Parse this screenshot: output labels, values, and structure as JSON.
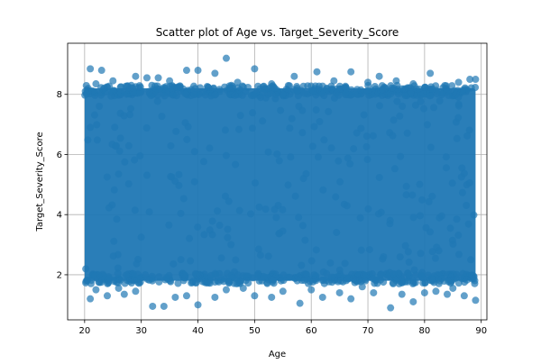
{
  "chart_data": {
    "type": "scatter",
    "title": "Scatter plot of Age vs. Target_Severity_Score",
    "xlabel": "Age",
    "ylabel": "Target_Severity_Score",
    "xlim": [
      17,
      91
    ],
    "ylim": [
      0.5,
      9.7
    ],
    "xticks": [
      20,
      30,
      40,
      50,
      60,
      70,
      80,
      90
    ],
    "yticks": [
      2,
      4,
      6,
      8
    ],
    "xtick_labels": [
      "20",
      "30",
      "40",
      "50",
      "60",
      "70",
      "80",
      "90"
    ],
    "ytick_labels": [
      "2",
      "4",
      "6",
      "8"
    ],
    "grid": true,
    "legend": "none",
    "marker_color": "#1f77b4",
    "marker_alpha": 0.7,
    "x_range_of_points": [
      20,
      89
    ],
    "dense_band": [
      1.8,
      8.2
    ],
    "outliers": [
      [
        21,
        8.85
      ],
      [
        23,
        8.8
      ],
      [
        29,
        8.6
      ],
      [
        33,
        8.55
      ],
      [
        35,
        8.45
      ],
      [
        38,
        8.8
      ],
      [
        40,
        8.8
      ],
      [
        43,
        8.7
      ],
      [
        45,
        9.2
      ],
      [
        50,
        8.85
      ],
      [
        57,
        8.6
      ],
      [
        61,
        8.75
      ],
      [
        64,
        8.45
      ],
      [
        67,
        8.75
      ],
      [
        72,
        8.6
      ],
      [
        75,
        8.45
      ],
      [
        81,
        8.7
      ],
      [
        88,
        8.5
      ],
      [
        22,
        8.35
      ],
      [
        25,
        8.45
      ],
      [
        31,
        8.55
      ],
      [
        47,
        8.4
      ],
      [
        53,
        8.35
      ],
      [
        70,
        8.4
      ],
      [
        78,
        8.35
      ],
      [
        86,
        8.4
      ],
      [
        89,
        8.5
      ],
      [
        21,
        1.2
      ],
      [
        24,
        1.3
      ],
      [
        27,
        1.35
      ],
      [
        32,
        0.95
      ],
      [
        34,
        0.95
      ],
      [
        36,
        1.25
      ],
      [
        38,
        1.3
      ],
      [
        40,
        1.0
      ],
      [
        43,
        1.25
      ],
      [
        50,
        1.3
      ],
      [
        53,
        1.25
      ],
      [
        58,
        1.05
      ],
      [
        60,
        1.5
      ],
      [
        62,
        1.25
      ],
      [
        67,
        1.2
      ],
      [
        71,
        1.4
      ],
      [
        74,
        0.9
      ],
      [
        76,
        1.35
      ],
      [
        78,
        1.1
      ],
      [
        80,
        1.4
      ],
      [
        84,
        1.35
      ],
      [
        87,
        1.3
      ],
      [
        89,
        1.15
      ],
      [
        22,
        1.5
      ],
      [
        29,
        1.45
      ],
      [
        45,
        1.5
      ],
      [
        55,
        1.45
      ],
      [
        65,
        1.4
      ],
      [
        82,
        1.45
      ],
      [
        26,
        1.55
      ],
      [
        48,
        1.55
      ],
      [
        69,
        1.6
      ],
      [
        85,
        1.55
      ]
    ]
  }
}
